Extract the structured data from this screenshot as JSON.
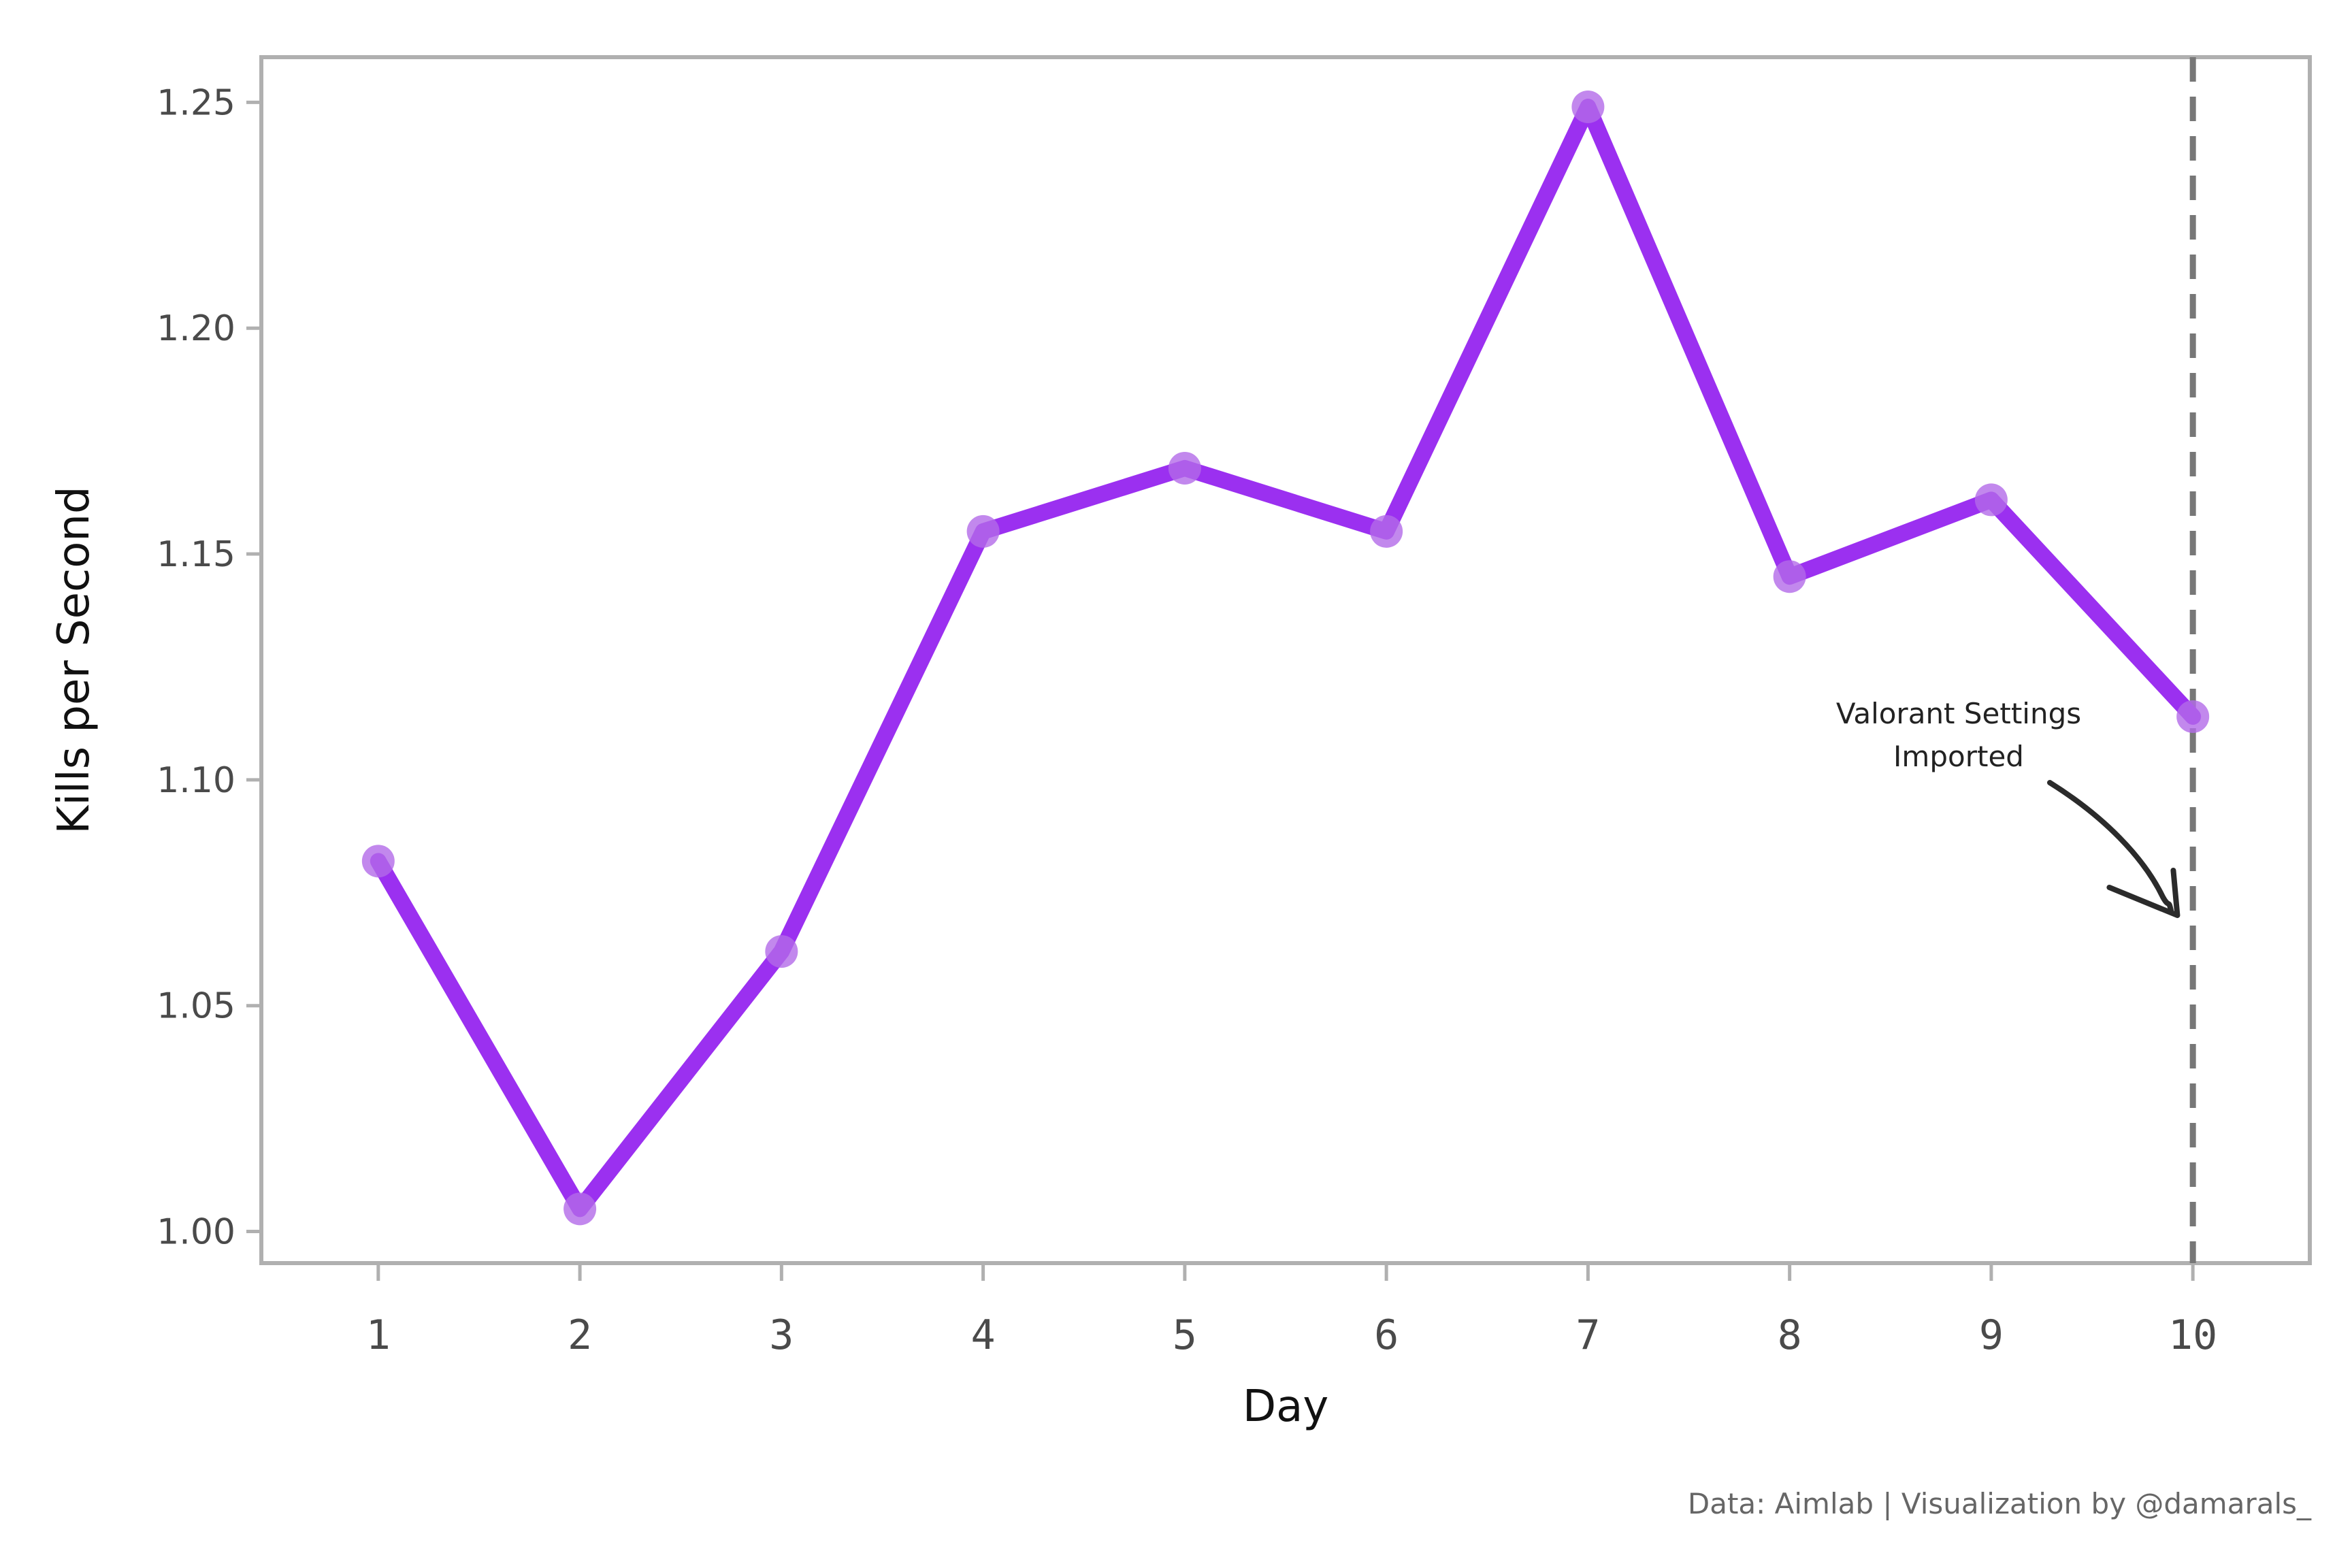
{
  "chart_data": {
    "type": "line",
    "title": "",
    "xlabel": "Day",
    "ylabel": "Kills per Second",
    "x": [
      1,
      2,
      3,
      4,
      5,
      6,
      7,
      8,
      9,
      10
    ],
    "xticks": [
      "1",
      "2",
      "3",
      "4",
      "5",
      "6",
      "7",
      "8",
      "9",
      "10"
    ],
    "yticks": [
      "1.00",
      "1.05",
      "1.10",
      "1.15",
      "1.20",
      "1.25"
    ],
    "ytick_values": [
      1.0,
      1.05,
      1.1,
      1.15,
      1.2,
      1.25
    ],
    "xlim": [
      0.42,
      10.58
    ],
    "ylim": [
      0.993,
      1.26
    ],
    "series": [
      {
        "values": [
          1.082,
          1.005,
          1.062,
          1.155,
          1.169,
          1.155,
          1.249,
          1.145,
          1.162,
          1.114
        ],
        "color": "#9b30f0",
        "marker_color": "#b36ae8"
      }
    ],
    "vline": {
      "x": 10,
      "style": "dashed",
      "color": "#777777"
    },
    "annotation": {
      "lines": [
        "Valorant Settings",
        "Imported"
      ],
      "arrow_target": {
        "x": 9.93,
        "y": 1.07
      }
    },
    "grid": false,
    "legend": "none",
    "frame_color": "#b0b0b0"
  },
  "caption": "Data: Aimlab | Visualization by @damarals_"
}
